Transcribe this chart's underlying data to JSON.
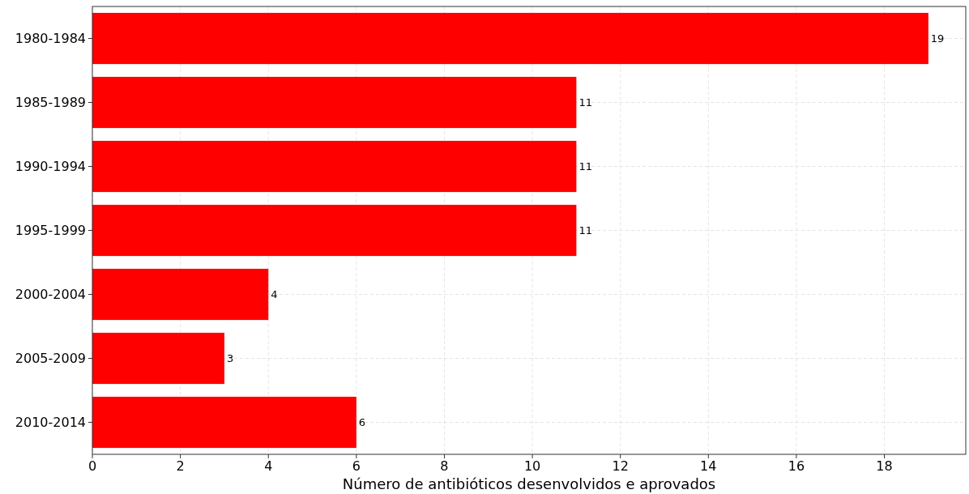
{
  "chart_data": {
    "type": "bar",
    "orientation": "horizontal",
    "xlabel": "Número de antibióticos desenvolvidos e aprovados",
    "categories": [
      "1980-1984",
      "1985-1989",
      "1990-1994",
      "1995-1999",
      "2000-2004",
      "2005-2009",
      "2010-2014"
    ],
    "values": [
      19,
      11,
      11,
      11,
      4,
      3,
      6
    ],
    "color": "#ff0000",
    "xlim": [
      0,
      19.85
    ],
    "xticks": [
      0,
      2,
      4,
      6,
      8,
      10,
      12,
      14,
      16,
      18
    ],
    "grid": true,
    "data_labels": true
  }
}
